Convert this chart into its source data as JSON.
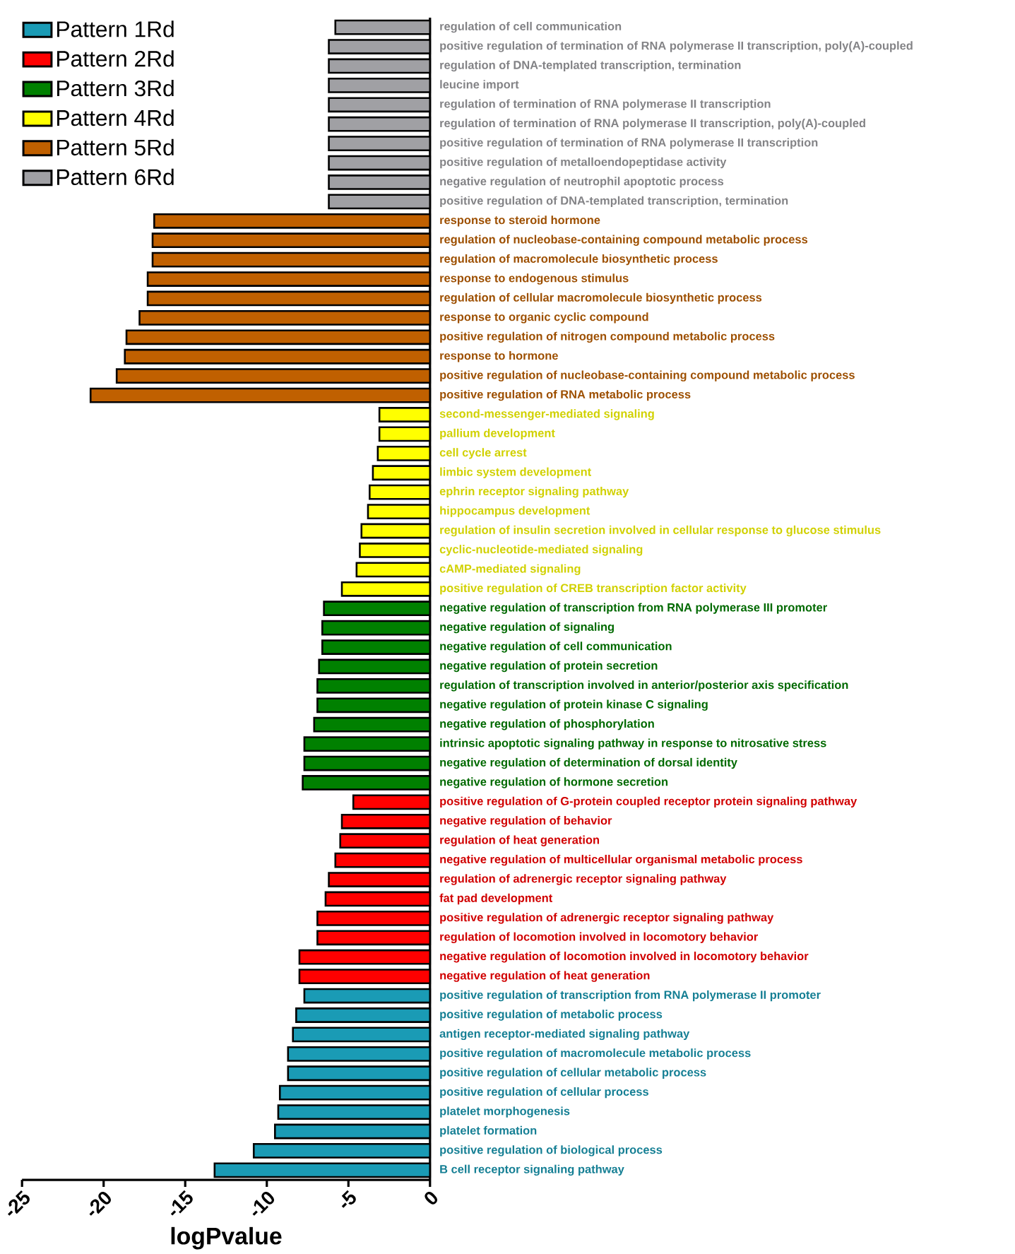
{
  "chart_data": {
    "type": "bar",
    "orientation": "horizontal",
    "xlabel": "logPvalue",
    "xlim": [
      -25,
      0
    ],
    "xticks": [
      -25,
      -20,
      -15,
      -10,
      -5,
      0
    ],
    "legend": "top left",
    "categories": [
      "regulation of cell communication",
      "positive regulation of termination of RNA polymerase II transcription, poly(A)-coupled",
      "regulation of DNA-templated transcription, termination",
      "leucine import",
      "regulation of termination of RNA polymerase II transcription",
      "regulation of termination of RNA polymerase II transcription, poly(A)-coupled",
      "positive regulation of termination of RNA polymerase II transcription",
      "positive regulation of metalloendopeptidase activity",
      "negative regulation of neutrophil apoptotic process",
      "positive regulation of DNA-templated transcription, termination",
      "response to steroid hormone",
      "regulation of nucleobase-containing compound metabolic process",
      "regulation of macromolecule biosynthetic process",
      "response to endogenous stimulus",
      "regulation of cellular macromolecule biosynthetic process",
      "response to organic cyclic compound",
      "positive regulation of nitrogen compound metabolic process",
      "response to hormone",
      "positive regulation of nucleobase-containing compound metabolic process",
      "positive regulation of RNA metabolic process",
      "second-messenger-mediated signaling",
      "pallium development",
      "cell cycle arrest",
      "limbic system development",
      "ephrin receptor signaling pathway",
      "hippocampus development",
      "regulation of insulin secretion involved in cellular response to glucose stimulus",
      "cyclic-nucleotide-mediated signaling",
      "cAMP-mediated signaling",
      "positive regulation of CREB transcription factor activity",
      "negative regulation of transcription from RNA polymerase III promoter",
      "negative regulation of signaling",
      "negative regulation of cell communication",
      "negative regulation of protein secretion",
      "regulation of transcription involved in anterior/posterior axis specification",
      "negative regulation of protein kinase C signaling",
      "negative regulation of phosphorylation",
      "intrinsic apoptotic signaling pathway in response to nitrosative stress",
      "negative regulation of determination of dorsal identity",
      "negative regulation of hormone secretion",
      "positive regulation of G-protein coupled receptor protein signaling pathway",
      "negative regulation of behavior",
      "regulation of heat generation",
      "negative regulation of multicellular organismal metabolic process",
      "regulation of adrenergic receptor signaling pathway",
      "fat pad development",
      "positive regulation of adrenergic receptor signaling pathway",
      "regulation of locomotion involved in locomotory behavior",
      "negative regulation of locomotion involved in locomotory behavior",
      "negative regulation of heat generation",
      "positive regulation of transcription from RNA polymerase II promoter",
      "positive regulation of metabolic process",
      "antigen receptor-mediated signaling pathway",
      "positive regulation of macromolecule metabolic process",
      "positive regulation of cellular metabolic process",
      "positive regulation of cellular process",
      "platelet morphogenesis",
      "platelet formation",
      "positive regulation of biological process",
      "B cell receptor signaling pathway"
    ],
    "series": [
      {
        "name": "Pattern 1Rd",
        "color": "#1a9bb5",
        "values": [
          null,
          null,
          null,
          null,
          null,
          null,
          null,
          null,
          null,
          null,
          null,
          null,
          null,
          null,
          null,
          null,
          null,
          null,
          null,
          null,
          null,
          null,
          null,
          null,
          null,
          null,
          null,
          null,
          null,
          null,
          null,
          null,
          null,
          null,
          null,
          null,
          null,
          null,
          null,
          null,
          null,
          null,
          null,
          null,
          null,
          null,
          null,
          null,
          null,
          null,
          -7.7,
          -8.2,
          -8.4,
          -8.7,
          -8.7,
          -9.2,
          -9.3,
          -9.5,
          -10.8,
          -13.2
        ]
      },
      {
        "name": "Pattern 2Rd",
        "color": "#ff0000",
        "values": [
          null,
          null,
          null,
          null,
          null,
          null,
          null,
          null,
          null,
          null,
          null,
          null,
          null,
          null,
          null,
          null,
          null,
          null,
          null,
          null,
          null,
          null,
          null,
          null,
          null,
          null,
          null,
          null,
          null,
          null,
          null,
          null,
          null,
          null,
          null,
          null,
          null,
          null,
          null,
          null,
          -4.7,
          -5.4,
          -5.5,
          -5.8,
          -6.2,
          -6.4,
          -6.9,
          -6.9,
          -8.0,
          -8.0,
          null,
          null,
          null,
          null,
          null,
          null,
          null,
          null,
          null,
          null
        ]
      },
      {
        "name": "Pattern 3Rd",
        "color": "#008000",
        "values": [
          null,
          null,
          null,
          null,
          null,
          null,
          null,
          null,
          null,
          null,
          null,
          null,
          null,
          null,
          null,
          null,
          null,
          null,
          null,
          null,
          null,
          null,
          null,
          null,
          null,
          null,
          null,
          null,
          null,
          null,
          -6.5,
          -6.6,
          -6.6,
          -6.8,
          -6.9,
          -6.9,
          -7.1,
          -7.7,
          -7.7,
          -7.8,
          null,
          null,
          null,
          null,
          null,
          null,
          null,
          null,
          null,
          null,
          null,
          null,
          null,
          null,
          null,
          null,
          null,
          null,
          null,
          null
        ]
      },
      {
        "name": "Pattern 4Rd",
        "color": "#ffff00",
        "values": [
          null,
          null,
          null,
          null,
          null,
          null,
          null,
          null,
          null,
          null,
          null,
          null,
          null,
          null,
          null,
          null,
          null,
          null,
          null,
          null,
          -3.1,
          -3.1,
          -3.2,
          -3.5,
          -3.7,
          -3.8,
          -4.2,
          -4.3,
          -4.5,
          -5.4,
          null,
          null,
          null,
          null,
          null,
          null,
          null,
          null,
          null,
          null,
          null,
          null,
          null,
          null,
          null,
          null,
          null,
          null,
          null,
          null,
          null,
          null,
          null,
          null,
          null,
          null,
          null,
          null,
          null,
          null
        ]
      },
      {
        "name": "Pattern 5Rd",
        "color": "#c06000",
        "values": [
          null,
          null,
          null,
          null,
          null,
          null,
          null,
          null,
          null,
          null,
          -16.9,
          -17.0,
          -17.0,
          -17.3,
          -17.3,
          -17.8,
          -18.6,
          -18.7,
          -19.2,
          -20.8,
          null,
          null,
          null,
          null,
          null,
          null,
          null,
          null,
          null,
          null,
          null,
          null,
          null,
          null,
          null,
          null,
          null,
          null,
          null,
          null,
          null,
          null,
          null,
          null,
          null,
          null,
          null,
          null,
          null,
          null,
          null,
          null,
          null,
          null,
          null,
          null,
          null,
          null,
          null,
          null
        ]
      },
      {
        "name": "Pattern 6Rd",
        "color": "#a0a0a4",
        "values": [
          -5.8,
          -6.2,
          -6.2,
          -6.2,
          -6.2,
          -6.2,
          -6.2,
          -6.2,
          -6.2,
          -6.2,
          null,
          null,
          null,
          null,
          null,
          null,
          null,
          null,
          null,
          null,
          null,
          null,
          null,
          null,
          null,
          null,
          null,
          null,
          null,
          null,
          null,
          null,
          null,
          null,
          null,
          null,
          null,
          null,
          null,
          null,
          null,
          null,
          null,
          null,
          null,
          null,
          null,
          null,
          null,
          null,
          null,
          null,
          null,
          null,
          null,
          null,
          null,
          null,
          null,
          null
        ]
      }
    ]
  }
}
